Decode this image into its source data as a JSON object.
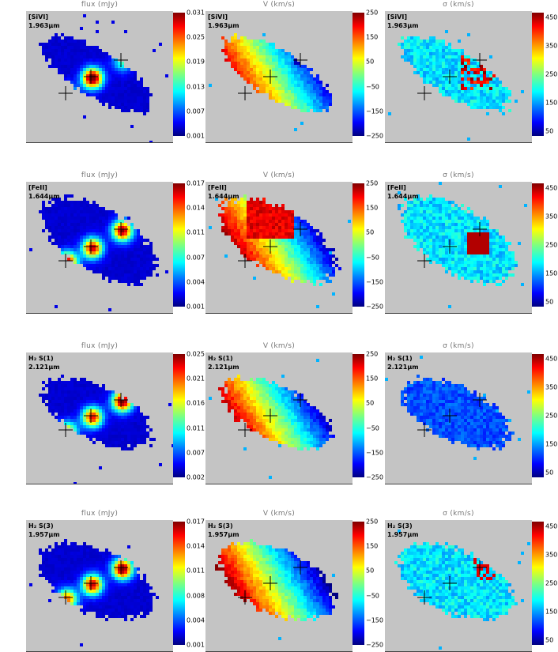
{
  "column_titles": [
    "flux (mJy)",
    "V (km/s)",
    "σ (km/s)"
  ],
  "rows": [
    {
      "line": "[SiVI]",
      "wavelength": "1.963",
      "unit": "μm",
      "flux_ticks": [
        "0.031",
        "0.025",
        "0.019",
        "0.013",
        "0.007",
        "0.001"
      ],
      "vel_ticks": [
        "250",
        "150",
        "50",
        "−50",
        "−150",
        "−250"
      ],
      "sigma_ticks": [
        "450",
        "350",
        "250",
        "150",
        "50"
      ]
    },
    {
      "line": "[FeII]",
      "wavelength": "1.644",
      "unit": "μm",
      "flux_ticks": [
        "0.017",
        "0.014",
        "0.011",
        "0.007",
        "0.004",
        "0.001"
      ],
      "vel_ticks": [
        "250",
        "150",
        "50",
        "−50",
        "−150",
        "−250"
      ],
      "sigma_ticks": [
        "450",
        "350",
        "250",
        "150",
        "50"
      ]
    },
    {
      "line": "H₂ S(1)",
      "wavelength": "2.121",
      "unit": "μm",
      "flux_ticks": [
        "0.025",
        "0.021",
        "0.016",
        "0.011",
        "0.007",
        "0.002"
      ],
      "vel_ticks": [
        "250",
        "150",
        "50",
        "−50",
        "−150",
        "−250"
      ],
      "sigma_ticks": [
        "450",
        "350",
        "250",
        "150",
        "50"
      ]
    },
    {
      "line": "H₂ S(3)",
      "wavelength": "1.957",
      "unit": "μm",
      "flux_ticks": [
        "0.017",
        "0.014",
        "0.011",
        "0.008",
        "0.004",
        "0.001"
      ],
      "vel_ticks": [
        "250",
        "150",
        "50",
        "−50",
        "−150",
        "−250"
      ],
      "sigma_ticks": [
        "450",
        "350",
        "250",
        "150",
        "50"
      ]
    }
  ],
  "colors": {
    "background": "#c4c4c4",
    "colormap": [
      "#00007f",
      "#0000ff",
      "#0080ff",
      "#00ffff",
      "#7fff7f",
      "#ffff00",
      "#ff8000",
      "#ff0000",
      "#7f0000"
    ]
  },
  "markers": "plus-cross-icon"
}
